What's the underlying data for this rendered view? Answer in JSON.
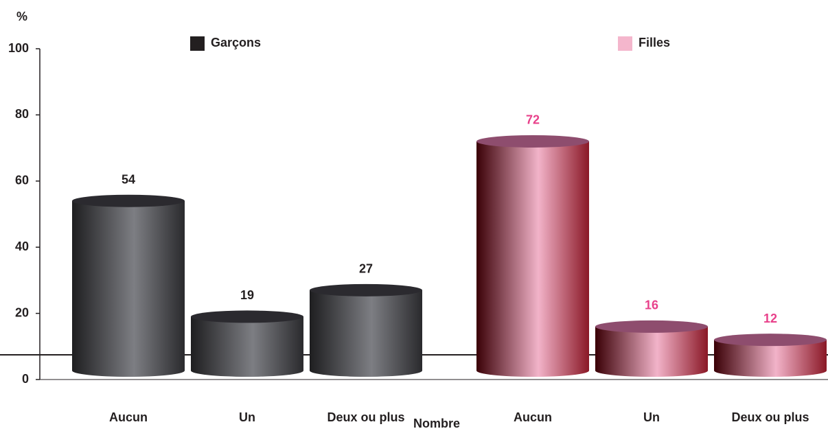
{
  "chart_data": {
    "type": "bar",
    "y_label": "%",
    "x_label": "Nombre",
    "categories": [
      "Aucun",
      "Un",
      "Deux ou plus",
      "Aucun",
      "Un",
      "Deux ou plus"
    ],
    "series": [
      {
        "name": "Garçons",
        "color": "#231f20",
        "label_color": "#231f20",
        "values": [
          54,
          19,
          27,
          null,
          null,
          null
        ]
      },
      {
        "name": "Filles",
        "color": "#f4b6cc",
        "label_color": "#e8408a",
        "values": [
          null,
          null,
          null,
          72,
          16,
          12
        ]
      }
    ],
    "ylim": [
      0,
      100
    ],
    "yticks": [
      0,
      20,
      40,
      60,
      80,
      100
    ],
    "grid": false
  }
}
